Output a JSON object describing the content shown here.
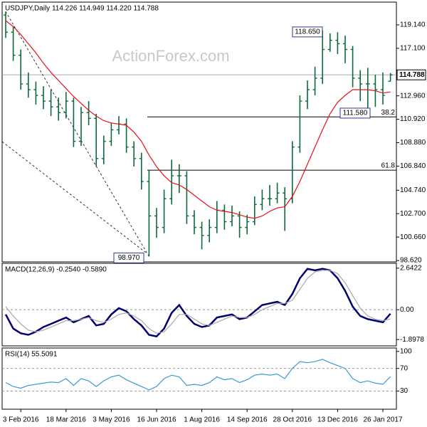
{
  "watermark": "ActionForex.com",
  "chart_data": [
    {
      "type": "ohlc",
      "title": "USDJPY,Daily  114.226 114.949 114.220 114.788",
      "categories": [
        null,
        null,
        "3 Feb 2016",
        null,
        null,
        null,
        null,
        null,
        "18 Mar 2016",
        null,
        null,
        null,
        null,
        null,
        "3 May 2016",
        null,
        null,
        null,
        null,
        null,
        "16 Jun 2016",
        null,
        null,
        null,
        null,
        null,
        "1 Aug 2016",
        null,
        null,
        null,
        null,
        null,
        "14 Sep 2016",
        null,
        null,
        null,
        null,
        null,
        "28 Oct 2016",
        null,
        null,
        null,
        null,
        null,
        "13 Dec 2016",
        null,
        null,
        null,
        null,
        null,
        "26 Jan 2017",
        null
      ],
      "open": [
        120.0,
        118.5,
        116.5,
        114.0,
        113.5,
        113.0,
        112.5,
        112.0,
        111.5,
        112.5,
        109.0,
        111.5,
        111.0,
        107.5,
        109.0,
        110.0,
        110.5,
        108.5,
        107.5,
        105.5,
        102.5,
        101.5,
        104.0,
        106.0,
        106.0,
        102.5,
        101.5,
        100.8,
        101.5,
        103.0,
        102.0,
        102.5,
        101.5,
        102.0,
        103.5,
        104.0,
        104.0,
        104.5,
        104.0,
        108.5,
        112.5,
        113.5,
        114.5,
        117.0,
        117.8,
        117.5,
        117.0,
        114.5,
        114.0,
        114.0,
        113.5,
        114.226
      ],
      "high": [
        120.3,
        119.0,
        117.0,
        115.0,
        114.2,
        113.8,
        113.5,
        112.8,
        113.3,
        112.8,
        112.0,
        112.5,
        111.4,
        109.5,
        110.6,
        111.2,
        111.0,
        109.0,
        108.0,
        106.5,
        103.2,
        104.8,
        107.4,
        107.0,
        106.4,
        103.0,
        102.0,
        102.2,
        103.8,
        103.5,
        103.4,
        102.9,
        102.6,
        104.2,
        104.8,
        105.2,
        105.4,
        105.0,
        109.0,
        113.0,
        114.3,
        115.5,
        118.65,
        118.4,
        118.5,
        118.2,
        117.3,
        115.2,
        115.4,
        114.8,
        115.0,
        114.949
      ],
      "low": [
        118.0,
        116.0,
        113.5,
        112.8,
        112.2,
        111.8,
        111.2,
        110.8,
        111.0,
        108.5,
        108.6,
        110.4,
        106.8,
        107.0,
        108.6,
        109.6,
        108.0,
        106.8,
        104.8,
        98.97,
        100.6,
        101.0,
        103.5,
        104.5,
        101.8,
        100.9,
        99.6,
        100.2,
        101.0,
        101.3,
        101.6,
        100.6,
        100.9,
        101.7,
        103.0,
        103.4,
        103.6,
        101.2,
        103.6,
        108.0,
        111.8,
        113.0,
        114.0,
        116.8,
        116.6,
        115.8,
        113.7,
        112.5,
        111.58,
        112.0,
        112.2,
        114.22
      ],
      "close": [
        118.5,
        116.5,
        114.0,
        113.5,
        113.0,
        112.5,
        112.0,
        111.5,
        112.5,
        109.0,
        111.5,
        111.0,
        107.5,
        109.0,
        110.0,
        110.5,
        108.5,
        107.5,
        105.5,
        102.5,
        101.5,
        104.0,
        106.0,
        106.0,
        102.5,
        101.5,
        100.8,
        101.5,
        103.0,
        102.0,
        102.5,
        101.5,
        102.0,
        103.5,
        104.0,
        104.0,
        104.5,
        104.0,
        108.5,
        112.5,
        113.5,
        114.5,
        117.0,
        117.8,
        117.5,
        117.0,
        114.5,
        114.0,
        114.0,
        113.5,
        113.0,
        114.788
      ],
      "color": "#0b6b3a",
      "series": [
        {
          "color": "#e8101b",
          "values": [
            119.5,
            119.0,
            118.3,
            117.5,
            116.7,
            115.8,
            115.0,
            114.3,
            113.6,
            112.9,
            112.3,
            111.7,
            111.2,
            110.8,
            110.6,
            110.5,
            110.4,
            109.8,
            109.0,
            107.8,
            106.8,
            106.0,
            105.4,
            105.2,
            104.8,
            104.3,
            103.8,
            103.3,
            103.0,
            102.9,
            102.8,
            102.6,
            102.4,
            102.3,
            102.5,
            102.9,
            103.2,
            103.3,
            104.2,
            105.5,
            107.0,
            108.5,
            110.0,
            111.4,
            112.4,
            113.0,
            113.5,
            113.5,
            113.5,
            113.4,
            113.2,
            113.3
          ]
        }
      ],
      "ylim": [
        98.5,
        121.12
      ],
      "yticks": [
        {
          "value": 119.14,
          "label": "119.140"
        },
        {
          "value": 117.1,
          "label": "117.100"
        },
        {
          "value": 112.96,
          "label": "112.960"
        },
        {
          "value": 110.92,
          "label": "110.920"
        },
        {
          "value": 108.88,
          "label": "108.880"
        },
        {
          "value": 106.84,
          "label": "106.840"
        },
        {
          "value": 104.74,
          "label": "104.740"
        },
        {
          "value": 102.7,
          "label": "102.700"
        },
        {
          "value": 100.66,
          "label": "100.660"
        },
        {
          "value": 98.62,
          "label": "98.620"
        }
      ],
      "fib_levels": [
        {
          "value": 111.13,
          "label": "38.2"
        },
        {
          "value": 106.49,
          "label": "61.8"
        }
      ],
      "annotations": [
        {
          "value": 118.65,
          "label": "118.650"
        },
        {
          "value": 111.58,
          "label": "111.580"
        },
        {
          "value": 98.97,
          "label": "98.970"
        }
      ]
    },
    {
      "type": "line",
      "title": "MACD(12,26,9) -0.2540 -0.5890",
      "series": [
        {
          "color": "#00006e",
          "values": [
            -0.3,
            -1.2,
            -1.5,
            -1.6,
            -1.4,
            -1.1,
            -0.9,
            -0.7,
            -0.5,
            -0.8,
            -0.6,
            -0.4,
            -1.0,
            -0.9,
            -0.3,
            0.1,
            -0.1,
            -0.6,
            -1.0,
            -1.6,
            -1.7,
            -1.2,
            -0.2,
            0.3,
            -0.4,
            -0.9,
            -1.1,
            -1.0,
            -0.5,
            -0.4,
            -0.3,
            -0.6,
            -0.5,
            -0.1,
            0.3,
            0.4,
            0.5,
            0.3,
            1.0,
            2.0,
            2.6,
            2.5,
            2.6,
            2.5,
            2.0,
            1.2,
            0.2,
            -0.4,
            -0.6,
            -0.7,
            -0.8,
            -0.254
          ]
        },
        {
          "color": "#a8a8a8",
          "values": [
            0.2,
            -0.4,
            -0.9,
            -1.3,
            -1.4,
            -1.3,
            -1.1,
            -0.9,
            -0.7,
            -0.7,
            -0.6,
            -0.5,
            -0.7,
            -0.8,
            -0.6,
            -0.3,
            -0.2,
            -0.4,
            -0.7,
            -1.2,
            -1.5,
            -1.4,
            -0.9,
            -0.3,
            -0.3,
            -0.6,
            -0.9,
            -1.0,
            -0.8,
            -0.6,
            -0.4,
            -0.5,
            -0.5,
            -0.3,
            0.0,
            0.2,
            0.4,
            0.4,
            0.6,
            1.3,
            2.0,
            2.4,
            2.5,
            2.5,
            2.3,
            1.7,
            0.9,
            0.1,
            -0.4,
            -0.6,
            -0.7,
            -0.589
          ]
        }
      ],
      "ylim": [
        -2.3,
        2.95
      ],
      "yticks": [
        2.6422,
        {
          "value": 0,
          "label": "0.00"
        },
        -1.8978
      ],
      "gridlines": [
        0
      ]
    },
    {
      "type": "line",
      "title": "RSI(14) 55.5091",
      "series": [
        {
          "color": "#3a9ad0",
          "values": [
            45,
            38,
            35,
            40,
            42,
            44,
            46,
            45,
            52,
            40,
            52,
            48,
            38,
            48,
            55,
            58,
            50,
            44,
            38,
            32,
            38,
            52,
            58,
            55,
            40,
            42,
            40,
            45,
            55,
            50,
            52,
            45,
            50,
            58,
            60,
            58,
            60,
            52,
            70,
            82,
            80,
            82,
            86,
            80,
            75,
            70,
            52,
            45,
            48,
            44,
            42,
            55.5091
          ]
        }
      ],
      "ylim": [
        -2,
        106
      ],
      "yticks": [
        100,
        70,
        30
      ],
      "gridlines": [
        70,
        30
      ]
    }
  ]
}
